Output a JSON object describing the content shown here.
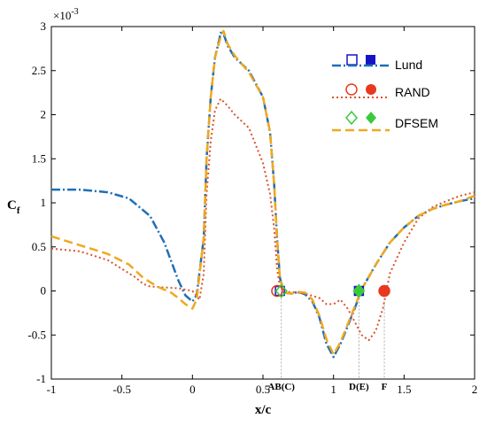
{
  "chart_data": {
    "type": "line",
    "xlabel": "x/c",
    "ylabel": "C",
    "ylabel_sub": "f",
    "scale_note": "×10",
    "scale_exp": "-3",
    "xlim": [
      -1,
      2
    ],
    "ylim": [
      -1,
      3
    ],
    "xticks": [
      -1,
      -0.5,
      0,
      0.5,
      1,
      1.5,
      2
    ],
    "xtick_labels": [
      "-1",
      "-0.5",
      "0",
      "0.5",
      "1",
      "1.5",
      "2"
    ],
    "yticks": [
      -1,
      -0.5,
      0,
      0.5,
      1,
      1.5,
      2,
      2.5,
      3
    ],
    "ytick_labels": [
      "-1",
      "-0.5",
      "0",
      "0.5",
      "1",
      "1.5",
      "2",
      "2.5",
      "3"
    ],
    "grid": false,
    "legend_position": "top-right",
    "series": [
      {
        "name": "Lund",
        "color": "#1f6fb5",
        "style": "dashdot",
        "x": [
          -1,
          -0.8,
          -0.6,
          -0.45,
          -0.3,
          -0.2,
          -0.1,
          -0.05,
          0,
          0.03,
          0.08,
          0.1,
          0.13,
          0.16,
          0.19,
          0.2,
          0.22,
          0.25,
          0.3,
          0.4,
          0.5,
          0.55,
          0.58,
          0.6,
          0.62,
          0.65,
          0.7,
          0.75,
          0.8,
          0.85,
          0.9,
          0.95,
          1,
          1.05,
          1.1,
          1.15,
          1.2,
          1.3,
          1.4,
          1.5,
          1.6,
          1.7,
          1.8,
          1.9,
          2
        ],
        "y": [
          1.15,
          1.15,
          1.12,
          1.05,
          0.85,
          0.55,
          0.12,
          -0.05,
          -0.12,
          -0.05,
          0.6,
          1.5,
          2.2,
          2.65,
          2.85,
          2.93,
          2.92,
          2.78,
          2.65,
          2.5,
          2.2,
          1.8,
          1.2,
          0.6,
          0.15,
          -0.02,
          -0.03,
          -0.01,
          -0.04,
          -0.12,
          -0.3,
          -0.6,
          -0.75,
          -0.6,
          -0.4,
          -0.2,
          0.02,
          0.3,
          0.55,
          0.72,
          0.85,
          0.93,
          0.98,
          1.02,
          1.05
        ]
      },
      {
        "name": "RAND",
        "color": "#d9532c",
        "style": "dotted",
        "x": [
          -1,
          -0.8,
          -0.6,
          -0.5,
          -0.4,
          -0.35,
          -0.3,
          -0.2,
          -0.1,
          0,
          0.05,
          0.08,
          0.1,
          0.13,
          0.16,
          0.2,
          0.25,
          0.3,
          0.4,
          0.5,
          0.55,
          0.58,
          0.6,
          0.62,
          0.65,
          0.7,
          0.8,
          0.9,
          0.95,
          1,
          1.05,
          1.1,
          1.15,
          1.2,
          1.25,
          1.3,
          1.35,
          1.4,
          1.5,
          1.6,
          1.7,
          1.8,
          1.9,
          2
        ],
        "y": [
          0.48,
          0.45,
          0.35,
          0.25,
          0.15,
          0.08,
          0.05,
          0.04,
          0.03,
          0,
          -0.1,
          0.2,
          1.1,
          1.7,
          2.05,
          2.18,
          2.1,
          2.0,
          1.85,
          1.45,
          1.1,
          0.7,
          0.25,
          0.05,
          -0.02,
          -0.01,
          -0.03,
          -0.08,
          -0.15,
          -0.15,
          -0.1,
          -0.2,
          -0.35,
          -0.5,
          -0.56,
          -0.45,
          -0.2,
          0.2,
          0.55,
          0.82,
          0.95,
          1.02,
          1.08,
          1.12
        ]
      },
      {
        "name": "DFSEM",
        "color": "#f0a81e",
        "style": "dashed",
        "x": [
          -1,
          -0.8,
          -0.6,
          -0.45,
          -0.35,
          -0.25,
          -0.15,
          -0.1,
          -0.05,
          0,
          0.03,
          0.08,
          0.1,
          0.13,
          0.16,
          0.2,
          0.22,
          0.25,
          0.3,
          0.4,
          0.5,
          0.55,
          0.58,
          0.6,
          0.62,
          0.65,
          0.7,
          0.75,
          0.8,
          0.85,
          0.9,
          0.95,
          1,
          1.05,
          1.1,
          1.15,
          1.2,
          1.3,
          1.4,
          1.5,
          1.6,
          1.7,
          1.8,
          1.9,
          2
        ],
        "y": [
          0.62,
          0.52,
          0.42,
          0.3,
          0.15,
          0.05,
          -0.02,
          -0.08,
          -0.15,
          -0.2,
          -0.1,
          0.6,
          1.5,
          2.2,
          2.65,
          2.88,
          2.95,
          2.8,
          2.67,
          2.48,
          2.2,
          1.8,
          1.2,
          0.6,
          0.15,
          -0.02,
          -0.03,
          -0.01,
          -0.02,
          -0.1,
          -0.28,
          -0.55,
          -0.72,
          -0.58,
          -0.38,
          -0.18,
          0.02,
          0.3,
          0.55,
          0.72,
          0.85,
          0.93,
          0.98,
          1.02,
          1.08
        ]
      }
    ],
    "markers": [
      {
        "series": "Lund",
        "shape": "square",
        "filled": false,
        "x": 0.62,
        "y": 0
      },
      {
        "series": "Lund",
        "shape": "square",
        "filled": true,
        "x": 1.18,
        "y": 0
      },
      {
        "series": "RAND",
        "shape": "circle",
        "filled": false,
        "x": 0.6,
        "y": 0
      },
      {
        "series": "RAND",
        "shape": "circle",
        "filled": true,
        "x": 1.36,
        "y": 0
      },
      {
        "series": "DFSEM",
        "shape": "diamond",
        "filled": false,
        "x": 0.63,
        "y": 0
      },
      {
        "series": "DFSEM",
        "shape": "diamond",
        "filled": true,
        "x": 1.18,
        "y": 0
      }
    ],
    "marker_colors": {
      "Lund": "#1515c8",
      "RAND": "#e8391f",
      "DFSEM": "#3cc93c"
    },
    "annotations": [
      {
        "label": "AB(C)",
        "x": 0.63
      },
      {
        "label": "D(E)",
        "x": 1.18
      },
      {
        "label": "F",
        "x": 1.36
      }
    ]
  }
}
